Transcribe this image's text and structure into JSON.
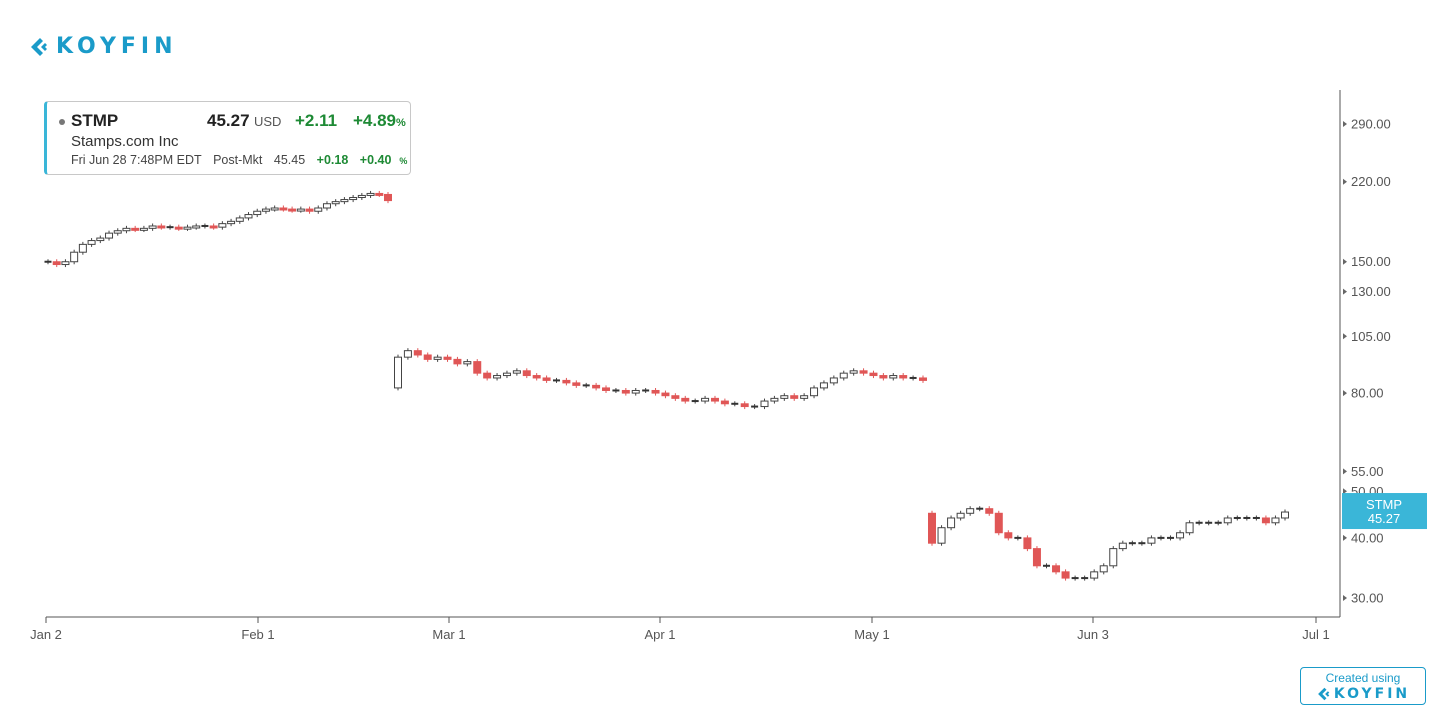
{
  "brand": {
    "logo_text": "KOYFIN",
    "credit_line": "Created using",
    "credit_logo": "KOYFIN"
  },
  "quote": {
    "ticker": "STMP",
    "price": "45.27",
    "currency": "USD",
    "change": "+2.11",
    "change_pct": "+4.89",
    "pct_sign": "%",
    "name": "Stamps.com Inc",
    "timestamp": "Fri Jun 28 7:48PM EDT",
    "session": "Post-Mkt",
    "post_price": "45.45",
    "post_change": "+0.18",
    "post_change_pct": "+0.40",
    "post_pct_sign": "%"
  },
  "colors": {
    "up": "#ffffff",
    "down": "#e05656",
    "neutral": "#333333",
    "accent": "#3ab6d8",
    "brand": "#1a9bc9"
  },
  "chart_data": {
    "type": "candlestick",
    "y_scale": "log",
    "ylim": [
      27,
      340
    ],
    "y_ticks": [
      290,
      220,
      150,
      130,
      105,
      80,
      55,
      50,
      40,
      30
    ],
    "y_tick_labels": [
      "290.00",
      "220.00",
      "150.00",
      "130.00",
      "105.00",
      "80.00",
      "55.00",
      "50.00",
      "40.00",
      "30.00"
    ],
    "x_ticks": [
      "Jan 2",
      "Feb 1",
      "Mar 1",
      "Apr 1",
      "May 1",
      "Jun 3",
      "Jul 1"
    ],
    "last_price_tag": {
      "ticker": "STMP",
      "value": "45.27"
    },
    "segments": [
      {
        "period": "Jan 2 - Feb 21",
        "closes": [
          150,
          148,
          150,
          157,
          163,
          166,
          168,
          172,
          174,
          176,
          175,
          176,
          178,
          177,
          177,
          176,
          177,
          178,
          178,
          177,
          180,
          182,
          185,
          188,
          191,
          193,
          194,
          193,
          192,
          193,
          191,
          194,
          198,
          200,
          202,
          204,
          206,
          208,
          207,
          201
        ]
      },
      {
        "period": "Feb 22 - May 8",
        "closes": [
          95,
          98,
          96,
          94,
          95,
          94,
          92,
          93,
          88,
          86,
          87,
          88,
          89,
          87,
          86,
          85,
          85,
          84,
          83,
          83,
          82,
          81,
          81,
          80,
          81,
          81,
          80,
          79,
          78,
          77,
          77,
          78,
          77,
          76,
          76,
          75,
          75,
          77,
          78,
          79,
          78,
          79,
          82,
          84,
          86,
          88,
          89,
          88,
          87,
          86,
          87,
          86,
          86,
          85
        ]
      },
      {
        "period": "May 9 - Jun 28",
        "closes": [
          39,
          42,
          44,
          45,
          46,
          46,
          45,
          41,
          40,
          40,
          38,
          35,
          35,
          34,
          33,
          33,
          33,
          34,
          35,
          38,
          39,
          39,
          39,
          40,
          40,
          40,
          41,
          43,
          43,
          43,
          43,
          44,
          44,
          44,
          44,
          43,
          44,
          45.27
        ]
      }
    ]
  }
}
